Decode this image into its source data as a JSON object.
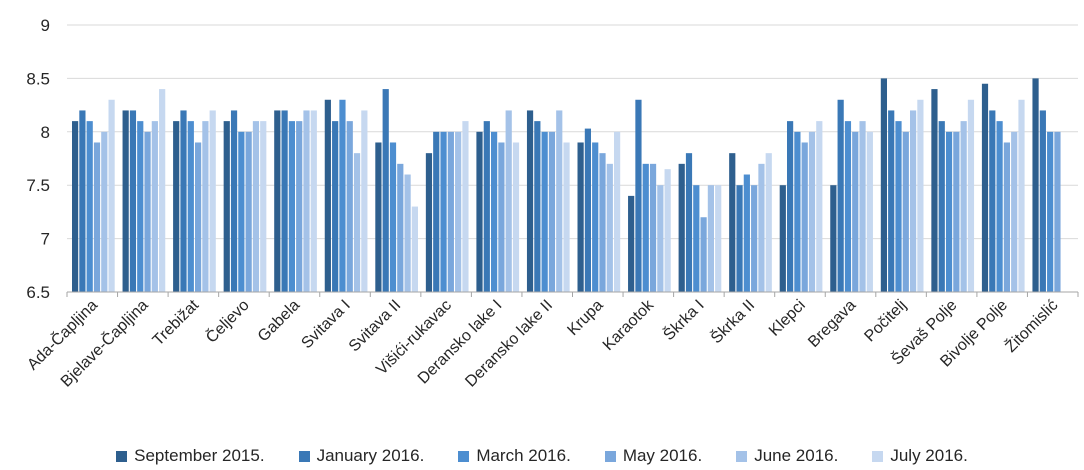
{
  "chart_data": {
    "type": "bar",
    "title": "",
    "xlabel": "",
    "ylabel": "",
    "ylim": [
      6.5,
      9
    ],
    "yticks": [
      "6.5",
      "7",
      "7.5",
      "8",
      "8.5",
      "9"
    ],
    "grid": true,
    "legend_position": "bottom",
    "categories": [
      "Ada-Čapljina",
      "Bjelave-Čapljina",
      "Trebižat",
      "Čeljevo",
      "Gabela",
      "Svitava I",
      "Svitava II",
      "Višići-rukavac",
      "Deransko lake I",
      "Deransko lake II",
      "Krupa",
      "Karaotok",
      "Škrka I",
      "Škrka II",
      "Klepci",
      "Bregava",
      "Počitelj",
      "Ševaš Polje",
      "Bivolje Polje",
      "Žitomislić"
    ],
    "series": [
      {
        "name": "September 2015.",
        "color": "#2e5f8e",
        "values": [
          8.1,
          8.2,
          8.1,
          8.1,
          8.2,
          8.3,
          7.9,
          7.8,
          8.0,
          8.2,
          7.9,
          7.4,
          7.7,
          7.8,
          7.5,
          7.5,
          8.5,
          8.4,
          8.45,
          8.5
        ]
      },
      {
        "name": "January 2016.",
        "color": "#3a78b6",
        "values": [
          8.2,
          8.2,
          8.2,
          8.2,
          8.2,
          8.1,
          8.4,
          8.0,
          8.1,
          8.1,
          8.03,
          8.3,
          7.8,
          7.5,
          8.1,
          8.3,
          8.2,
          8.1,
          8.2,
          8.2
        ]
      },
      {
        "name": "March 2016.",
        "color": "#4d8ed0",
        "values": [
          8.1,
          8.1,
          8.1,
          8.0,
          8.1,
          8.3,
          7.9,
          8.0,
          8.0,
          8.0,
          7.9,
          7.7,
          7.5,
          7.6,
          8.0,
          8.1,
          8.1,
          8.0,
          8.1,
          8.0
        ]
      },
      {
        "name": "May 2016.",
        "color": "#7aa7dc",
        "values": [
          7.9,
          8.0,
          7.9,
          8.0,
          8.1,
          8.1,
          7.7,
          8.0,
          7.9,
          8.0,
          7.8,
          7.7,
          7.2,
          7.5,
          7.9,
          8.0,
          8.0,
          8.0,
          7.9,
          8.0
        ]
      },
      {
        "name": "June 2016.",
        "color": "#a4c2e8",
        "values": [
          8.0,
          8.1,
          8.1,
          8.1,
          8.2,
          7.8,
          7.6,
          8.0,
          8.2,
          8.2,
          7.7,
          7.5,
          7.5,
          7.7,
          8.0,
          8.1,
          8.2,
          8.1,
          8.0,
          null
        ]
      },
      {
        "name": "July 2016.",
        "color": "#c6d8f0",
        "values": [
          8.3,
          8.4,
          8.2,
          8.1,
          8.2,
          8.2,
          7.3,
          8.1,
          7.9,
          7.9,
          8.0,
          7.65,
          7.5,
          7.8,
          8.1,
          8.0,
          8.3,
          8.3,
          8.3,
          null
        ]
      }
    ]
  }
}
